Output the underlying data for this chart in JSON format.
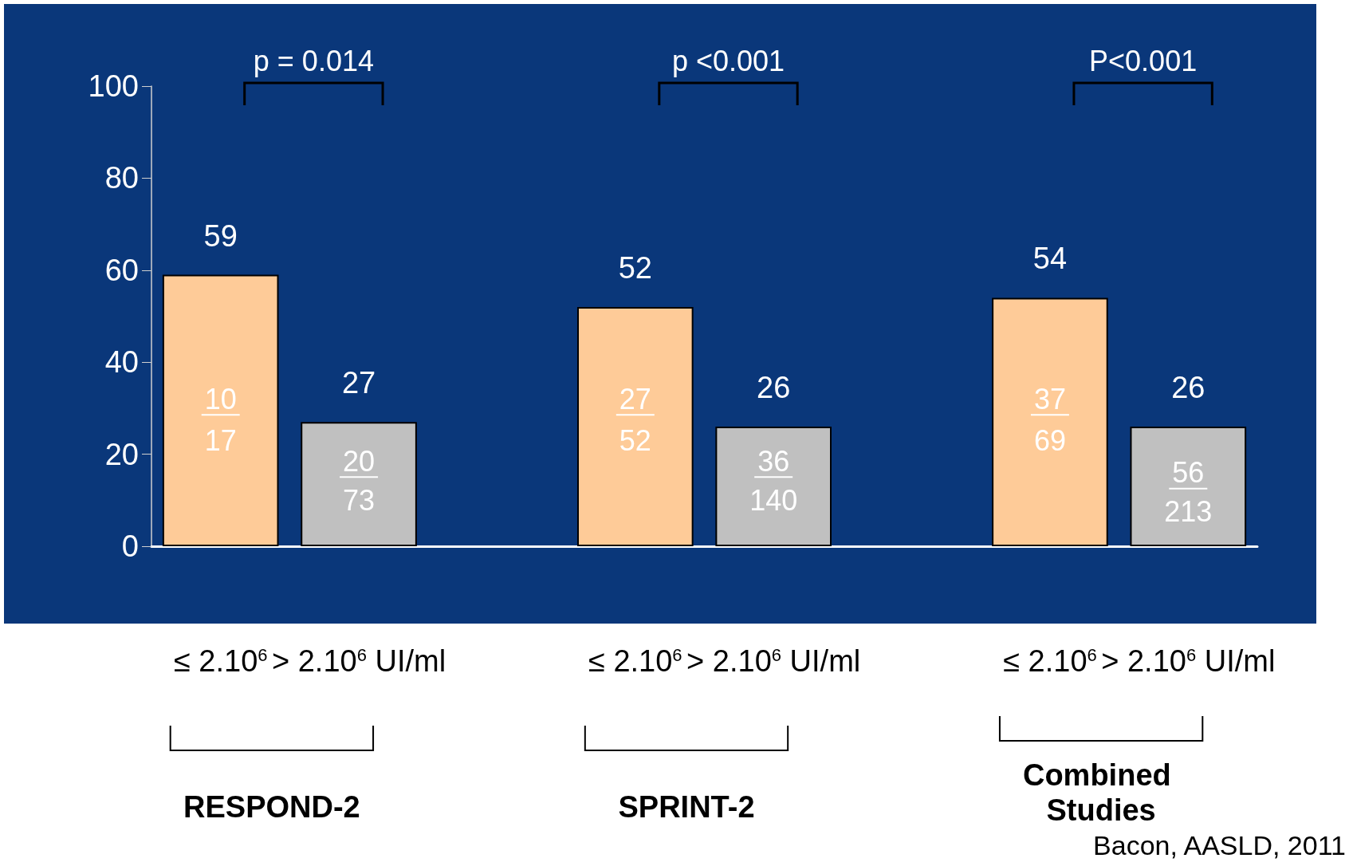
{
  "chart_data": {
    "type": "bar",
    "categories": [
      "≤ 2.10$^{6}$",
      "> 2.10$^{6}$ UI/ml",
      null,
      "≤ 2.10$^{6}$",
      "> 2.10$^{6}$ UI/ml",
      null,
      "≤ 2.10$^{6}$",
      "> 2.10$^{6}$ UI/ml"
    ],
    "values": [
      59,
      27,
      null,
      52,
      26,
      null,
      54,
      26
    ],
    "colors": [
      "#fecb98",
      "#c0c0c0",
      null,
      "#fecb98",
      "#c0c0c0",
      null,
      "#fecb98",
      "#c0c0c0"
    ],
    "ylim": [
      0,
      100
    ],
    "yticks": [
      0,
      20,
      40,
      60,
      80,
      100
    ],
    "grid": false,
    "data_labels": true,
    "annotations": [
      "10",
      "17",
      "20",
      "73",
      "27",
      "52",
      "36",
      "140",
      "37",
      "69",
      "56",
      "213",
      "p = 0.014",
      "p <0.001",
      "P<0.001",
      "RESPOND-2",
      "SPRINT-2",
      "Combined Studies",
      "Bacon, AASLD, 2011"
    ]
  }
}
